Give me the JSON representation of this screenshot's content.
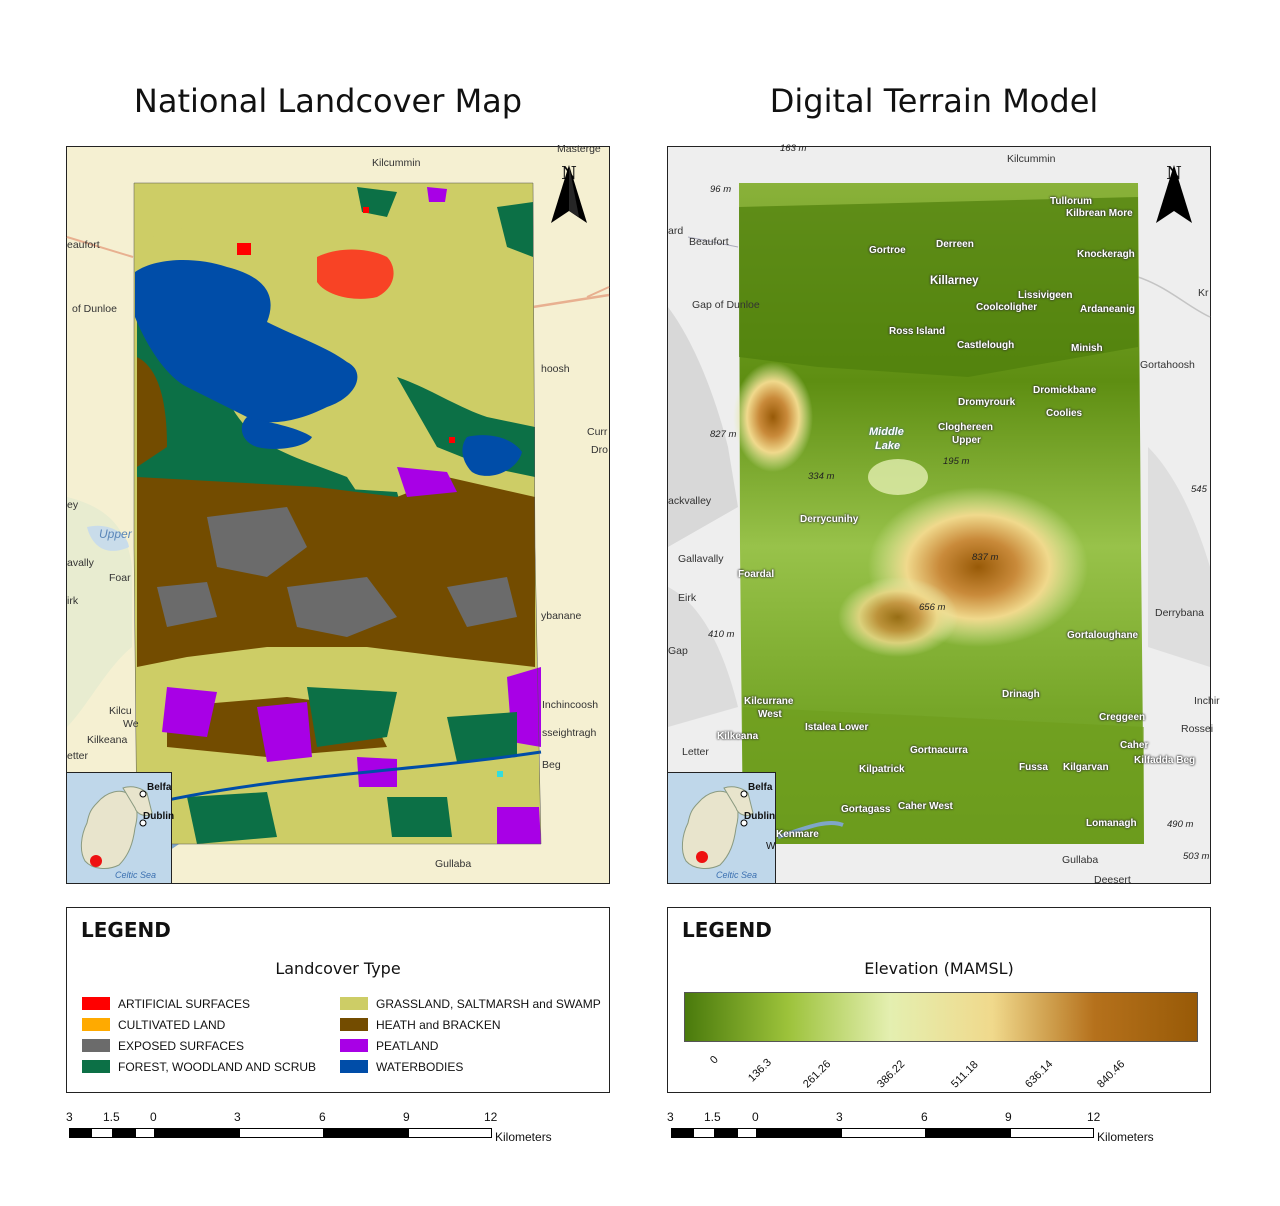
{
  "titles": {
    "left": "National Landcover Map",
    "right": "Digital Terrain Model"
  },
  "north_arrow": "N",
  "left_map": {
    "places": [
      {
        "name": "Kilcummin",
        "key": "kilcummin"
      },
      {
        "name": "Masterge",
        "key": "masterge"
      },
      {
        "name": "eaufort",
        "key": "eaufort"
      },
      {
        "name": "of Dunloe",
        "key": "dunloe"
      },
      {
        "name": "hoosh",
        "key": "hoosh"
      },
      {
        "name": "Curr",
        "key": "curr"
      },
      {
        "name": "Dro",
        "key": "dro"
      },
      {
        "name": "ey",
        "key": "ey"
      },
      {
        "name": "Upper",
        "key": "upper"
      },
      {
        "name": "avally",
        "key": "avally"
      },
      {
        "name": "Foar",
        "key": "foar"
      },
      {
        "name": "irk",
        "key": "irk"
      },
      {
        "name": "ybanane",
        "key": "ybanane"
      },
      {
        "name": "Kilcu",
        "key": "kilcu"
      },
      {
        "name": "We",
        "key": "we"
      },
      {
        "name": "Kilkeana",
        "key": "kilkeana"
      },
      {
        "name": "etter",
        "key": "etter"
      },
      {
        "name": "Inchincoosh",
        "key": "inchincoosh"
      },
      {
        "name": "sseightragh",
        "key": "sseightragh"
      },
      {
        "name": "Beg",
        "key": "beg"
      },
      {
        "name": "Gullaba",
        "key": "gullaba"
      }
    ]
  },
  "right_map": {
    "places": [
      {
        "name": "Kilcummin"
      },
      {
        "name": "Tullorum"
      },
      {
        "name": "Kilbrean More"
      },
      {
        "name": "Beaufort"
      },
      {
        "name": "Gortroe"
      },
      {
        "name": "Derreen"
      },
      {
        "name": "Knockeragh"
      },
      {
        "name": "Killarney"
      },
      {
        "name": "Lissivigeen"
      },
      {
        "name": "Coolcoligher"
      },
      {
        "name": "Ardaneanig"
      },
      {
        "name": "Gap of Dunloe"
      },
      {
        "name": "Ross Island"
      },
      {
        "name": "Castlelough"
      },
      {
        "name": "Minish"
      },
      {
        "name": "Gortahoosh"
      },
      {
        "name": "Dromickbane"
      },
      {
        "name": "Dromyrourk"
      },
      {
        "name": "Coolies"
      },
      {
        "name": "Cloghereen"
      },
      {
        "name": "Upper"
      },
      {
        "name": "ackvalley"
      },
      {
        "name": "Derrycunihy"
      },
      {
        "name": "Gallavally"
      },
      {
        "name": "Foardal"
      },
      {
        "name": "Eirk"
      },
      {
        "name": "Derrybana"
      },
      {
        "name": "Gap"
      },
      {
        "name": "Gortaloughane"
      },
      {
        "name": "Drinagh"
      },
      {
        "name": "Kilcurrane"
      },
      {
        "name": "West"
      },
      {
        "name": "Inchir"
      },
      {
        "name": "Istalea Lower"
      },
      {
        "name": "Creggeen"
      },
      {
        "name": "Rossei"
      },
      {
        "name": "Kilkeana"
      },
      {
        "name": "Caher"
      },
      {
        "name": "Letter"
      },
      {
        "name": "Gortnacurra"
      },
      {
        "name": "Kilfadda Beg"
      },
      {
        "name": "Kilpatrick"
      },
      {
        "name": "Fussa"
      },
      {
        "name": "Kilgarvan"
      },
      {
        "name": "Gortagass"
      },
      {
        "name": "Caher West"
      },
      {
        "name": "Lomanagh"
      },
      {
        "name": "Kenmare"
      },
      {
        "name": "Gullaba"
      },
      {
        "name": "Deesert"
      },
      {
        "name": "Kr"
      },
      {
        "name": "ard"
      }
    ],
    "elevations": [
      "163 m",
      "96 m",
      "827 m",
      "334 m",
      "195 m",
      "545",
      "837 m",
      "656 m",
      "410 m",
      "490 m",
      "503 m"
    ],
    "lake_label": [
      "Middle",
      "Lake"
    ]
  },
  "inset": {
    "labels": [
      "Belfa",
      "Dublin",
      "W"
    ],
    "sea": "Celtic Sea"
  },
  "legend_left": {
    "heading": "LEGEND",
    "subtitle": "Landcover Type",
    "items": [
      {
        "label": "ARTIFICIAL SURFACES",
        "color": "#ff0000"
      },
      {
        "label": "CULTIVATED LAND",
        "color": "#ffaa00"
      },
      {
        "label": "EXPOSED SURFACES",
        "color": "#6b6b6b"
      },
      {
        "label": "FOREST, WOODLAND AND SCRUB",
        "color": "#0c7046"
      },
      {
        "label": "GRASSLAND, SALTMARSH and SWAMP",
        "color": "#cdcd66"
      },
      {
        "label": "HEATH and BRACKEN",
        "color": "#734c00"
      },
      {
        "label": "PEATLAND",
        "color": "#a800e6"
      },
      {
        "label": "WATERBODIES",
        "color": "#004da8"
      }
    ]
  },
  "legend_right": {
    "heading": "LEGEND",
    "subtitle": "Elevation (MAMSL)",
    "ticks": [
      "0",
      "136.3",
      "261.26",
      "386.22",
      "511.18",
      "636.14",
      "840.46"
    ],
    "ramp_colors": [
      "#4a7a0c",
      "#9cc23a",
      "#e4efb0",
      "#f0d98c",
      "#b5711c",
      "#985a07"
    ]
  },
  "scalebar": {
    "labels": [
      "3",
      "1.5",
      "0",
      "3",
      "6",
      "9",
      "12"
    ],
    "unit": "Kilometers"
  }
}
